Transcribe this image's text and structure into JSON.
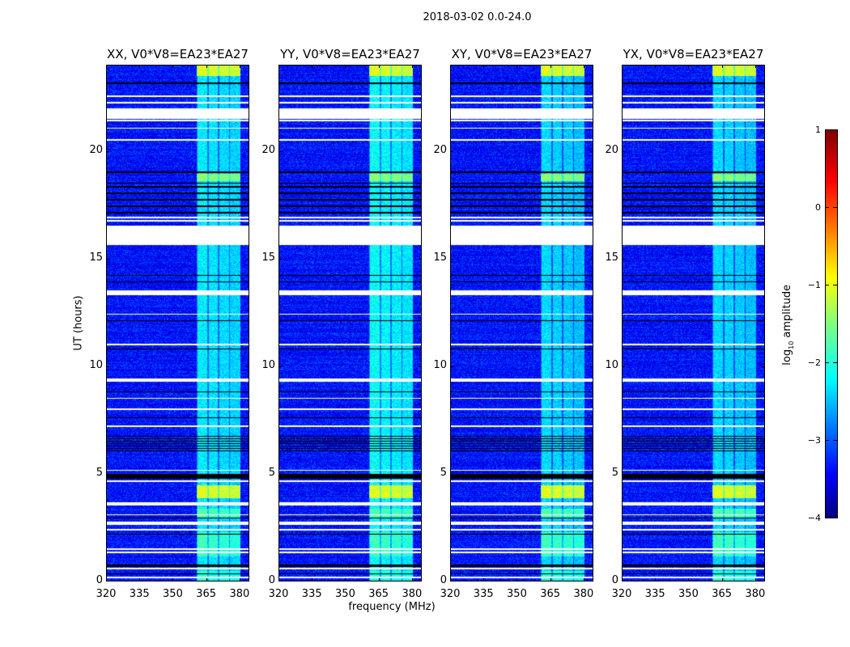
{
  "chart_data": {
    "type": "heatmap",
    "title": "2018-03-02 0.0-24.0",
    "xlabel": "frequency (MHz)",
    "ylabel": "UT (hours)",
    "xlim": [
      320,
      384.4
    ],
    "ylim": [
      0,
      24
    ],
    "xticks": [
      "320",
      "335",
      "350",
      "365",
      "380"
    ],
    "xtick_values": [
      320,
      335,
      350,
      365,
      380
    ],
    "yticks": [
      "0",
      "5",
      "10",
      "15",
      "20"
    ],
    "ytick_values": [
      0,
      5,
      10,
      15,
      20
    ],
    "panels": [
      {
        "title": "XX, V0*V8=EA23*EA27",
        "band_level": -2.2
      },
      {
        "title": "YY, V0*V8=EA23*EA27",
        "band_level": -2.1
      },
      {
        "title": "XY, V0*V8=EA23*EA27",
        "band_level": -2.3
      },
      {
        "title": "YX, V0*V8=EA23*EA27",
        "band_level": -2.3
      }
    ],
    "background_level": -3.3,
    "subbands_mhz": [
      [
        360.7,
        365.6
      ],
      [
        365.6,
        370.5
      ],
      [
        370.5,
        375.3
      ],
      [
        375.3,
        380.1
      ]
    ],
    "bright_blocks_hours": [
      [
        3.9,
        4.5,
        -1.0
      ],
      [
        18.6,
        18.95,
        -1.4
      ],
      [
        23.5,
        24.0,
        -1.0
      ],
      [
        1.2,
        2.3,
        -1.8
      ],
      [
        3.0,
        3.4,
        -1.7
      ],
      [
        0.0,
        0.5,
        -1.9
      ]
    ],
    "flagged_rows_hours": [
      [
        15.65,
        16.55
      ],
      [
        21.5,
        22.0
      ],
      [
        22.2,
        22.3
      ],
      [
        22.5,
        22.6
      ],
      [
        21.4,
        21.45
      ],
      [
        21.05,
        21.1
      ],
      [
        20.5,
        20.55
      ],
      [
        16.75,
        16.8
      ],
      [
        16.9,
        16.95
      ],
      [
        13.3,
        13.55
      ],
      [
        12.4,
        12.45
      ],
      [
        11.0,
        11.05
      ],
      [
        9.3,
        9.45
      ],
      [
        8.5,
        8.55
      ],
      [
        8.0,
        8.05
      ],
      [
        7.2,
        7.25
      ],
      [
        5.15,
        5.2
      ],
      [
        4.65,
        4.7
      ],
      [
        3.55,
        3.7
      ],
      [
        3.1,
        3.15
      ],
      [
        2.65,
        2.8
      ],
      [
        2.4,
        2.45
      ],
      [
        1.5,
        1.55
      ],
      [
        1.35,
        1.4
      ],
      [
        0.6,
        0.65
      ],
      [
        0.18,
        0.25
      ]
    ],
    "dark_rows_hours": [
      [
        23.1,
        23.2
      ],
      [
        17.1,
        17.2
      ],
      [
        17.4,
        17.5
      ],
      [
        17.7,
        17.8
      ],
      [
        18.0,
        18.1
      ],
      [
        18.3,
        18.4
      ],
      [
        18.5,
        18.55
      ],
      [
        19.0,
        19.05
      ],
      [
        6.0,
        6.8
      ],
      [
        4.8,
        5.0
      ],
      [
        2.95,
        3.0
      ],
      [
        2.2,
        2.25
      ],
      [
        0.7,
        0.8
      ],
      [
        0.35,
        0.4
      ],
      [
        14.2,
        14.25
      ],
      [
        13.9,
        13.95
      ],
      [
        12.1,
        12.15
      ],
      [
        10.8,
        10.85
      ],
      [
        8.8,
        8.85
      ],
      [
        7.6,
        7.65
      ]
    ],
    "colorbar": {
      "label": "log10 amplitude",
      "label_base": "log",
      "label_sub": "10",
      "label_rest": " amplitude",
      "range": [
        -4,
        1
      ],
      "ticks": [
        "1",
        "0",
        "−1",
        "−2",
        "−3",
        "−4"
      ],
      "tick_values": [
        1,
        0,
        -1,
        -2,
        -3,
        -4
      ],
      "colormap": "jet"
    }
  }
}
